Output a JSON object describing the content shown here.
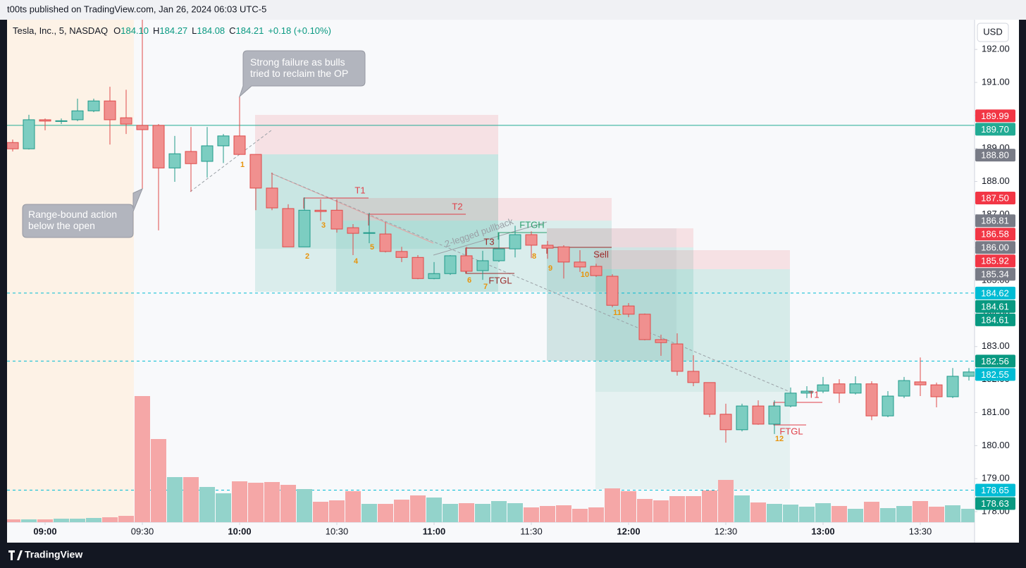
{
  "publisher_bar": "t00ts published on TradingView.com, Jan 26, 2024 06:03 UTC-5",
  "footer_brand": "TradingView",
  "chart_data": {
    "type": "candlestick",
    "symbol": "Tesla, Inc., 5, NASDAQ",
    "ohlc_legend": [
      {
        "key": "O",
        "value": "184.10"
      },
      {
        "key": "H",
        "value": "184.27"
      },
      {
        "key": "L",
        "value": "184.08"
      },
      {
        "key": "C",
        "value": "184.21"
      }
    ],
    "change": "+0.18 (+0.10%)",
    "currency": "USD",
    "categories": [
      null,
      null,
      "09:00",
      null,
      null,
      null,
      null,
      null,
      "09:30",
      null,
      null,
      null,
      null,
      null,
      "10:00",
      null,
      null,
      null,
      null,
      null,
      "10:30",
      null,
      null,
      null,
      null,
      null,
      "11:00",
      null,
      null,
      null,
      null,
      null,
      "11:30",
      null,
      null,
      null,
      null,
      null,
      "12:00",
      null,
      null,
      null,
      null,
      null,
      "12:30",
      null,
      null,
      null,
      null,
      null,
      "13:00",
      null,
      null,
      null,
      null,
      null,
      "13:30",
      null,
      null,
      null
    ],
    "open": [
      189.18,
      188.99,
      189.87,
      189.82,
      189.87,
      190.14,
      190.44,
      189.93,
      189.7,
      189.7,
      188.41,
      188.91,
      188.61,
      189.08,
      189.38,
      188.82,
      187.8,
      187.18,
      186.02,
      187.13,
      187.13,
      186.6,
      186.43,
      186.41,
      185.88,
      185.7,
      185.06,
      185.21,
      185.75,
      185.3,
      185.6,
      185.96,
      186.39,
      186.07,
      186.02,
      185.56,
      185.43,
      185.13,
      184.23,
      183.98,
      183.21,
      183.08,
      182.25,
      181.91,
      180.95,
      180.48,
      181.2,
      180.65,
      181.2,
      181.59,
      181.65,
      181.87,
      181.59,
      181.87,
      180.9,
      181.5,
      181.93,
      181.84,
      181.48,
      182.1
    ],
    "high": [
      189.27,
      190.02,
      189.91,
      189.91,
      190.51,
      190.51,
      190.87,
      190.78,
      193.0,
      189.74,
      189.38,
      189.65,
      189.65,
      189.44,
      190.59,
      188.82,
      188.27,
      187.31,
      187.52,
      187.46,
      187.46,
      186.71,
      187.05,
      186.77,
      186.02,
      185.77,
      185.56,
      185.77,
      186.02,
      185.9,
      186.45,
      186.66,
      186.49,
      186.2,
      186.07,
      185.92,
      185.51,
      185.19,
      184.32,
      184.0,
      183.36,
      183.4,
      182.74,
      181.91,
      181.27,
      181.27,
      181.37,
      181.37,
      181.76,
      181.8,
      182.08,
      182.01,
      182.1,
      181.95,
      181.65,
      182.08,
      182.67,
      181.91,
      182.35,
      182.35
    ],
    "low": [
      188.91,
      188.97,
      189.55,
      189.74,
      189.83,
      190.1,
      189.12,
      189.44,
      187.77,
      186.52,
      187.99,
      187.69,
      188.12,
      188.56,
      188.82,
      187.13,
      187.13,
      186.02,
      186.02,
      186.81,
      186.45,
      185.77,
      186.13,
      185.85,
      185.56,
      185.04,
      185.04,
      185.17,
      185.21,
      185.02,
      185.56,
      185.7,
      185.68,
      185.66,
      185.06,
      185.26,
      185.11,
      184.19,
      183.89,
      183.19,
      182.72,
      182.12,
      181.8,
      180.86,
      180.09,
      180.43,
      180.63,
      180.35,
      181.16,
      181.44,
      181.59,
      181.29,
      181.55,
      180.77,
      180.86,
      181.44,
      181.5,
      181.16,
      181.44,
      181.97
    ],
    "close": [
      188.99,
      189.87,
      189.83,
      189.84,
      190.14,
      190.44,
      189.87,
      189.74,
      189.57,
      188.41,
      188.84,
      188.54,
      189.08,
      189.38,
      188.82,
      187.8,
      187.2,
      186.02,
      187.13,
      187.09,
      186.56,
      186.43,
      186.45,
      185.88,
      185.7,
      185.06,
      185.21,
      185.75,
      185.28,
      185.6,
      185.96,
      186.39,
      186.07,
      185.98,
      185.56,
      185.41,
      185.15,
      184.25,
      183.98,
      183.21,
      183.12,
      182.25,
      181.91,
      180.95,
      180.48,
      181.2,
      180.65,
      181.2,
      181.59,
      181.65,
      181.84,
      181.59,
      181.87,
      180.9,
      181.5,
      181.97,
      181.84,
      181.48,
      182.1,
      182.23
    ],
    "volume": [
      4,
      4,
      4,
      5,
      5,
      6,
      7,
      9,
      179,
      118,
      64,
      64,
      50,
      41,
      58,
      56,
      57,
      53,
      47,
      29,
      31,
      44,
      26,
      26,
      32,
      38,
      35,
      26,
      27,
      26,
      30,
      27,
      21,
      23,
      24,
      19,
      21,
      48,
      44,
      33,
      31,
      37,
      37,
      45,
      60,
      38,
      28,
      26,
      25,
      22,
      27,
      23,
      19,
      29,
      20,
      23,
      30,
      22,
      24,
      19
    ],
    "up_color": "#7ccdc1",
    "up_border": "#1f9a8a",
    "down_color": "#f0908f",
    "down_border": "#df4a4a",
    "up_volume_color": "#93d3cb",
    "down_volume_color": "#f5a7a7",
    "ylim": [
      177.68,
      192.9
    ],
    "yticks": [
      {
        "value": 178,
        "label": "178.00"
      },
      {
        "value": 179,
        "label": "179.00"
      },
      {
        "value": 180,
        "label": "180.00"
      },
      {
        "value": 181,
        "label": "181.00"
      },
      {
        "value": 182,
        "label": "182.00"
      },
      {
        "value": 183,
        "label": "183.00"
      },
      {
        "value": 184,
        "label": "184.00"
      },
      {
        "value": 185,
        "label": "185.00"
      },
      {
        "value": 186,
        "label": "186.00"
      },
      {
        "value": 187,
        "label": "187.00"
      },
      {
        "value": 188,
        "label": "188.00"
      },
      {
        "value": 189,
        "label": "189.00"
      },
      {
        "value": 190,
        "label": "190.00"
      },
      {
        "value": 191,
        "label": "191.00"
      },
      {
        "value": 192,
        "label": "192.00"
      }
    ],
    "hlines": [
      {
        "value": 189.7,
        "color": "#22ab94",
        "dashed": false
      },
      {
        "value": 184.62,
        "color": "#00bcd4",
        "dashed": true
      },
      {
        "value": 182.56,
        "color": "#00bcd4",
        "dashed": true
      },
      {
        "value": 178.65,
        "color": "#00bcd4",
        "dashed": true
      }
    ],
    "price_tags": [
      {
        "value": 189.99,
        "label": "189.99",
        "color": "#f23645"
      },
      {
        "value": 189.7,
        "label": "189.70",
        "color": "#22ab94"
      },
      {
        "value": 188.8,
        "label": "188.80",
        "color": "#787b86"
      },
      {
        "value": 187.5,
        "label": "187.50",
        "color": "#f23645"
      },
      {
        "value": 186.81,
        "label": "186.81",
        "color": "#787b86"
      },
      {
        "value": 186.58,
        "label": "186.58",
        "color": "#f23645"
      },
      {
        "value": 186.0,
        "label": "186.00",
        "color": "#787b86"
      },
      {
        "value": 185.92,
        "label": "185.92",
        "color": "#f23645"
      },
      {
        "value": 185.34,
        "label": "185.34",
        "color": "#787b86"
      },
      {
        "value": 184.62,
        "label": "184.62",
        "color": "#00bcd4"
      },
      {
        "value": 184.61,
        "label": "184.61",
        "color": "#089981"
      },
      {
        "value": 184.61,
        "label": "184.61",
        "color": "#089981"
      },
      {
        "value": 182.56,
        "label": "182.56",
        "color": "#089981"
      },
      {
        "value": 182.55,
        "label": "182.55",
        "color": "#00bcd4"
      },
      {
        "value": 178.65,
        "label": "178.65",
        "color": "#00bcd4"
      },
      {
        "value": 178.63,
        "label": "178.63",
        "color": "#089981"
      }
    ],
    "callouts": [
      "Strong failure as bulls|tried to reclaim the OP",
      "Range-bound action|below the open"
    ],
    "annotations": [
      {
        "text": "1",
        "color": "#e8940c"
      },
      {
        "text": "2",
        "color": "#e8940c"
      },
      {
        "text": "3",
        "color": "#e8940c"
      },
      {
        "text": "4",
        "color": "#e8940c"
      },
      {
        "text": "5",
        "color": "#e8940c"
      },
      {
        "text": "6",
        "color": "#e8940c"
      },
      {
        "text": "7",
        "color": "#e8940c"
      },
      {
        "text": "8",
        "color": "#e8940c"
      },
      {
        "text": "9",
        "color": "#e8940c"
      },
      {
        "text": "10",
        "color": "#e8940c"
      },
      {
        "text": "11",
        "color": "#e8940c"
      },
      {
        "text": "12",
        "color": "#e8940c"
      },
      {
        "text": "T1",
        "color": "#e0404a"
      },
      {
        "text": "T2",
        "color": "#e0404a"
      },
      {
        "text": "T3",
        "color": "#9b2b2b"
      },
      {
        "text": "FTGH",
        "color": "#2f9e6e"
      },
      {
        "text": "FTGL",
        "color": "#9b2b2b"
      },
      {
        "text": "Sell",
        "color": "#9b2b2b"
      },
      {
        "text": "FTGL",
        "color": "#e0404a"
      },
      {
        "text": "T1",
        "color": "#e0404a"
      },
      {
        "text": "2-legged pullback",
        "color": "#9aa0a6"
      }
    ]
  }
}
